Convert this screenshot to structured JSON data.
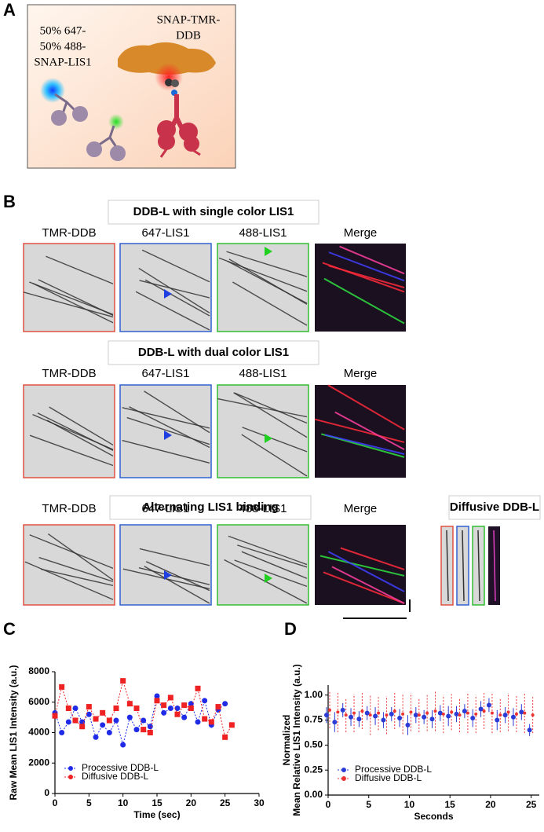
{
  "panel_labels": [
    "A",
    "B",
    "C",
    "D"
  ],
  "panel_a": {
    "left_label": [
      "50% 647-",
      "50% 488-",
      "SNAP-LIS1"
    ],
    "right_label": [
      "SNAP-TMR-",
      "DDB"
    ]
  },
  "panel_b": {
    "rows": [
      {
        "title": "DDB-L with single color LIS1",
        "headers": [
          "TMR-DDB",
          "647-LIS1",
          "488-LIS1",
          "Merge"
        ]
      },
      {
        "title": "DDB-L with dual color LIS1",
        "headers": [
          "TMR-DDB",
          "647-LIS1",
          "488-LIS1",
          "Merge"
        ]
      },
      {
        "title": "Alternating LIS1 binding",
        "headers": [
          "TMR-DDB",
          "647-LIS1",
          "488-LIS1",
          "Merge"
        ]
      }
    ],
    "side_title": "Diffusive DDB-L"
  },
  "chart_data": [
    {
      "type": "line",
      "x_label": "Time (sec)",
      "y_label": "Raw Mean LIS1 Intensity (a.u.)",
      "xlim": [
        0,
        30
      ],
      "xticks": [
        0,
        5,
        10,
        15,
        20,
        25,
        30
      ],
      "ylim": [
        0,
        8000
      ],
      "yticks": [
        0,
        2000,
        4000,
        6000,
        8000
      ],
      "legend": "bottom-left",
      "series": [
        {
          "name": "Processive DDB-L",
          "color": "#1f2be6",
          "marker": "circle",
          "x": [
            0,
            1,
            2,
            3,
            4,
            5,
            6,
            7,
            8,
            9,
            10,
            11,
            12,
            13,
            14,
            15,
            16,
            17,
            18,
            19,
            20,
            21,
            22,
            23,
            24,
            25
          ],
          "values": [
            5300,
            4000,
            4700,
            5600,
            4700,
            5200,
            3700,
            4500,
            4000,
            4800,
            3200,
            5000,
            4200,
            4800,
            4400,
            6400,
            5300,
            5600,
            5600,
            5000,
            5900,
            4700,
            6100,
            4500,
            5500,
            5900
          ]
        },
        {
          "name": "Diffusive DDB-L",
          "color": "#ee2222",
          "marker": "square",
          "x": [
            0,
            1,
            2,
            3,
            4,
            5,
            6,
            7,
            8,
            9,
            10,
            11,
            12,
            13,
            14,
            15,
            16,
            17,
            18,
            19,
            20,
            21,
            22,
            23,
            24,
            25,
            26
          ],
          "values": [
            5100,
            7000,
            5600,
            4800,
            4400,
            5700,
            4900,
            5300,
            4800,
            5600,
            7400,
            5900,
            5600,
            4200,
            4000,
            6100,
            5800,
            6300,
            5200,
            5800,
            5600,
            6900,
            4900,
            4700,
            5700,
            3700,
            4500
          ]
        }
      ]
    },
    {
      "type": "errorbar",
      "x_label": "Seconds",
      "y_label": [
        "Normalized",
        "Mean Relative LIS1 Intensity (a.u.)"
      ],
      "xlim": [
        0,
        26
      ],
      "xticks": [
        0,
        5,
        10,
        15,
        20,
        25
      ],
      "ylim": [
        0,
        1.1
      ],
      "yticks": [
        {
          "value": 0,
          "label": "0.00"
        },
        {
          "value": 0.25,
          "label": "0.25"
        },
        {
          "value": 0.5,
          "label": "0.50"
        },
        {
          "value": 0.75,
          "label": "0.75"
        },
        {
          "value": 1,
          "label": "1.00"
        }
      ],
      "legend": "bottom-left",
      "x": [
        0,
        1,
        2,
        3,
        4,
        5,
        6,
        7,
        8,
        9,
        10,
        11,
        12,
        13,
        14,
        15,
        16,
        17,
        18,
        19,
        20,
        21,
        22,
        23,
        24,
        25
      ],
      "series": [
        {
          "name": "Processive DDB-L",
          "color": "#2a3bd6",
          "values": [
            0.8,
            0.73,
            0.85,
            0.78,
            0.76,
            0.82,
            0.79,
            0.75,
            0.81,
            0.77,
            0.7,
            0.8,
            0.78,
            0.76,
            0.82,
            0.79,
            0.81,
            0.84,
            0.77,
            0.86,
            0.9,
            0.75,
            0.8,
            0.78,
            0.83,
            0.65
          ],
          "errors": [
            0.08,
            0.1,
            0.07,
            0.09,
            0.08,
            0.07,
            0.09,
            0.08,
            0.07,
            0.09,
            0.1,
            0.08,
            0.07,
            0.09,
            0.08,
            0.1,
            0.08,
            0.07,
            0.09,
            0.08,
            0.07,
            0.1,
            0.08,
            0.09,
            0.08,
            0.06
          ]
        },
        {
          "name": "Diffusive DDB-L",
          "color": "#ee3333",
          "values": [
            0.85,
            0.83,
            0.8,
            0.82,
            0.84,
            0.8,
            0.82,
            0.8,
            0.84,
            0.81,
            0.83,
            0.8,
            0.82,
            0.84,
            0.81,
            0.83,
            0.8,
            0.82,
            0.81,
            0.84,
            0.82,
            0.8,
            0.83,
            0.81,
            0.82,
            0.8
          ],
          "errors": [
            0.18,
            0.2,
            0.17,
            0.19,
            0.18,
            0.2,
            0.17,
            0.19,
            0.18,
            0.2,
            0.19,
            0.17,
            0.18,
            0.2,
            0.19,
            0.18,
            0.17,
            0.2,
            0.19,
            0.18,
            0.2,
            0.17,
            0.19,
            0.18,
            0.2,
            0.18
          ]
        }
      ]
    }
  ]
}
